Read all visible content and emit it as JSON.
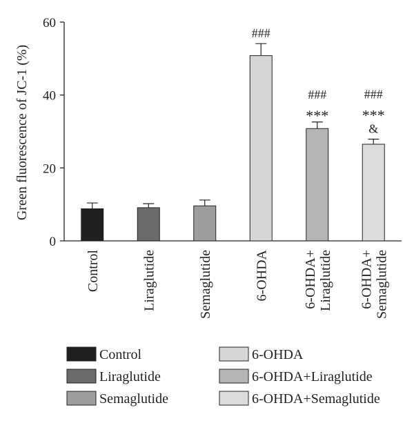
{
  "chart_data": {
    "type": "bar",
    "ylabel": "Green fluorescence of JC-1 (%)",
    "xlabel": "",
    "ylim": [
      0,
      60
    ],
    "yticks": [
      0,
      20,
      40,
      60
    ],
    "grid": false,
    "legend_position": "bottom",
    "categories": [
      {
        "label_lines": [
          "Control"
        ],
        "value": 8.8,
        "error": 1.6,
        "color": "#1f1f1f",
        "annotations": []
      },
      {
        "label_lines": [
          "Liraglutide"
        ],
        "value": 9.1,
        "error": 1.1,
        "color": "#6b6b6b",
        "annotations": []
      },
      {
        "label_lines": [
          "Semaglutide"
        ],
        "value": 9.6,
        "error": 1.6,
        "color": "#9e9e9e",
        "annotations": []
      },
      {
        "label_lines": [
          "6-OHDA"
        ],
        "value": 50.8,
        "error": 3.3,
        "color": "#d6d6d6",
        "annotations": [
          "###"
        ]
      },
      {
        "label_lines": [
          "6-OHDA+",
          "Liraglutide"
        ],
        "value": 30.8,
        "error": 1.8,
        "color": "#b4b4b4",
        "annotations": [
          "***",
          "###"
        ]
      },
      {
        "label_lines": [
          "6-OHDA+",
          "Semaglutide"
        ],
        "value": 26.5,
        "error": 1.4,
        "color": "#dcdcdc",
        "annotations": [
          "&",
          "***",
          "###"
        ]
      }
    ],
    "legend": [
      {
        "label": "Control",
        "color": "#1f1f1f"
      },
      {
        "label": "Liraglutide",
        "color": "#6b6b6b"
      },
      {
        "label": "Semaglutide",
        "color": "#9e9e9e"
      },
      {
        "label": "6-OHDA",
        "color": "#d6d6d6"
      },
      {
        "label": "6-OHDA+Liraglutide",
        "color": "#b4b4b4"
      },
      {
        "label": "6-OHDA+Semaglutide",
        "color": "#dcdcdc"
      }
    ]
  }
}
